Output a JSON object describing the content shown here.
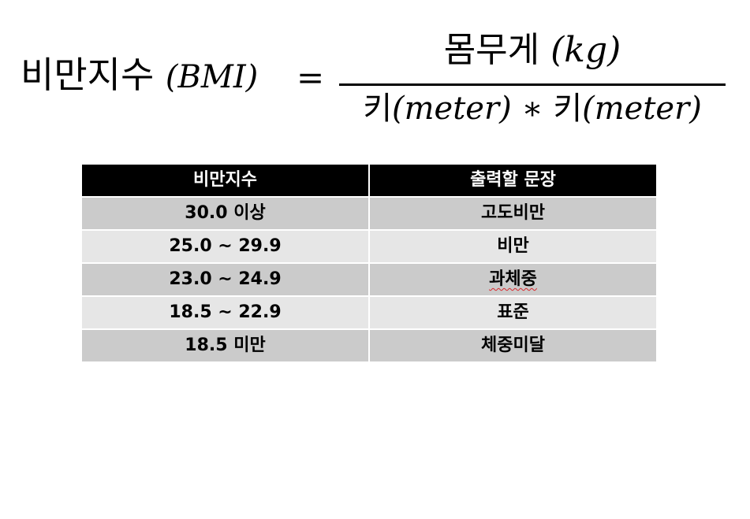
{
  "formula": {
    "lhs_label": "비만지수",
    "lhs_math": "(BMI)",
    "equals": "=",
    "numerator_word": "몸무게",
    "numerator_unit": "(kg)",
    "denominator_word_1": "키",
    "denominator_unit_1": "(meter)",
    "operator": "∗",
    "denominator_word_2": "키",
    "denominator_unit_2": "(meter)"
  },
  "table": {
    "headers": [
      "비만지수",
      "출력할 문장"
    ],
    "rows": [
      {
        "range": "30.0 이상",
        "message": "고도비만"
      },
      {
        "range": "25.0 ~ 29.9",
        "message": "비만"
      },
      {
        "range": "23.0 ~ 24.9",
        "message": "과체중"
      },
      {
        "range": "18.5 ~ 22.9",
        "message": "표준"
      },
      {
        "range": "18.5 미만",
        "message": "체중미달"
      }
    ],
    "colors": {
      "header_bg": "#000000",
      "header_text": "#ffffff",
      "row_odd_bg": "#cbcbcb",
      "row_even_bg": "#e6e6e6"
    }
  }
}
